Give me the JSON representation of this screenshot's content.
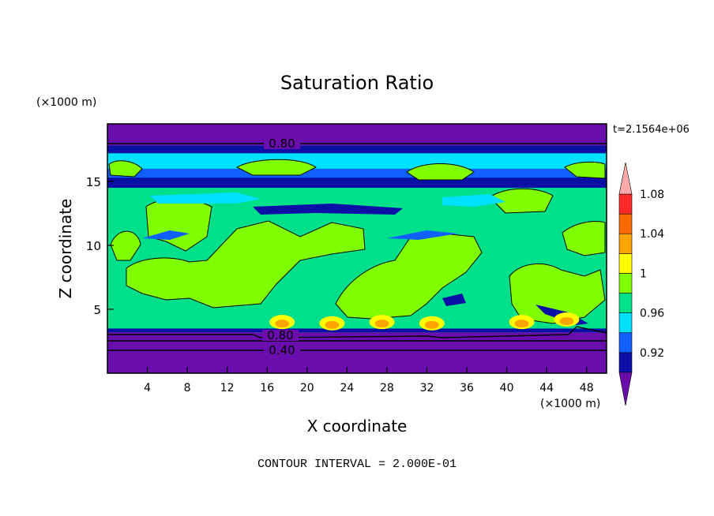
{
  "chart_data": {
    "type": "heatmap",
    "title": "Saturation Ratio",
    "xlabel": "X coordinate",
    "ylabel": "Z coordinate",
    "x_units": "(×1000 m)",
    "y_units": "(×1000 m)",
    "time_label": "t=2.1564e+06",
    "footer": "CONTOUR INTERVAL = 2.000E-01",
    "xlim": [
      0,
      50
    ],
    "ylim": [
      0,
      19.5
    ],
    "x_ticks": [
      4,
      8,
      12,
      16,
      20,
      24,
      28,
      32,
      36,
      40,
      44,
      48
    ],
    "y_ticks": [
      5,
      10,
      15
    ],
    "contour_labels": [
      "0.80",
      "0.80",
      "0.40"
    ],
    "colorbar": {
      "tick_labels": [
        "0.92",
        "0.96",
        "1",
        "1.04",
        "1.08"
      ],
      "colors": [
        "#6a0dad",
        "#0a0fa6",
        "#1060ff",
        "#00e0ff",
        "#00e08a",
        "#80ff00",
        "#ffff00",
        "#ffa500",
        "#ff6a00",
        "#ff2a2a",
        "#ffaaaa"
      ]
    },
    "bands": [
      {
        "range": [
          0,
          3.2
        ],
        "level": "<0.90",
        "color": "#6a0dad"
      },
      {
        "range": [
          3.2,
          3.5
        ],
        "level": "0.92-0.94",
        "color": "#0a0fa6"
      },
      {
        "range": [
          3.5,
          14.5
        ],
        "level": "0.98-1.00",
        "color": "#00e08a"
      },
      {
        "range": [
          14.5,
          15.3
        ],
        "level": "0.92-0.94",
        "color": "#0a0fa6"
      },
      {
        "range": [
          15.3,
          16.0
        ],
        "level": "0.94-0.96",
        "color": "#1060ff"
      },
      {
        "range": [
          16.0,
          17.2
        ],
        "level": "0.96-0.98",
        "color": "#00e0ff"
      },
      {
        "range": [
          17.2,
          17.8
        ],
        "level": "0.92-0.94",
        "color": "#0a0fa6"
      },
      {
        "range": [
          17.8,
          19.5
        ],
        "level": "<0.90",
        "color": "#6a0dad"
      }
    ]
  }
}
